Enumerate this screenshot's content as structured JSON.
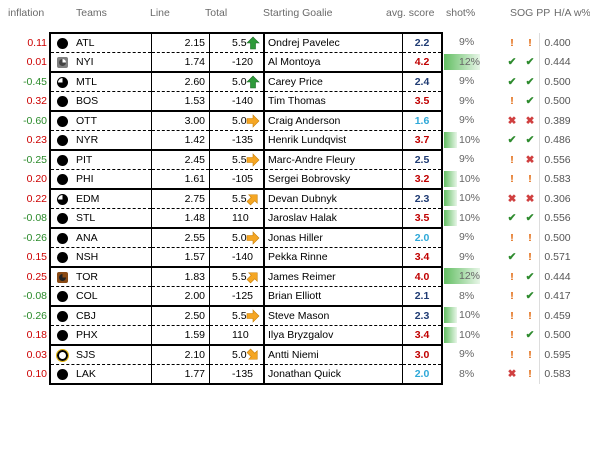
{
  "headers": {
    "inflation": "inflation",
    "teams": "Teams",
    "line": "Line",
    "total": "Total",
    "goalie": "Starting Goalie",
    "score": "avg. score",
    "shot": "shot%",
    "sogpp": "SOG PP",
    "ha": "H/A w%"
  },
  "rows": [
    {
      "inflation": "0.11",
      "team": "ATL",
      "logo": "full",
      "line": "2.15",
      "total": "5.5",
      "arrow": "up-green",
      "goalie": "Ondrej Pavelec",
      "score": "2.2",
      "score_class": "mid",
      "shot": "9%",
      "shot_fill": 0,
      "sog": "!",
      "pp": "!",
      "ha": "0.400",
      "group_pos": "top"
    },
    {
      "inflation": "0.01",
      "team": "NYI",
      "logo": "sq",
      "line": "1.74",
      "total": "-120",
      "arrow": "",
      "goalie": "Al Montoya",
      "score": "4.2",
      "score_class": "hi",
      "shot": "12%",
      "shot_fill": 0.7,
      "sog": "✔",
      "pp": "✔",
      "ha": "0.444",
      "group_pos": "bot"
    },
    {
      "inflation": "-0.45",
      "team": "MTL",
      "logo": "q",
      "line": "2.60",
      "total": "5.0",
      "arrow": "up-green",
      "goalie": "Carey Price",
      "score": "2.4",
      "score_class": "mid",
      "shot": "9%",
      "shot_fill": 0,
      "sog": "✔",
      "pp": "✔",
      "ha": "0.500",
      "group_pos": "top"
    },
    {
      "inflation": "0.32",
      "team": "BOS",
      "logo": "full",
      "line": "1.53",
      "total": "-140",
      "arrow": "",
      "goalie": "Tim Thomas",
      "score": "3.5",
      "score_class": "hi",
      "shot": "9%",
      "shot_fill": 0,
      "sog": "!",
      "pp": "✔",
      "ha": "0.500",
      "group_pos": "bot"
    },
    {
      "inflation": "-0.60",
      "team": "OTT",
      "logo": "full",
      "line": "3.00",
      "total": "5.0",
      "arrow": "right-orange",
      "goalie": "Craig Anderson",
      "score": "1.6",
      "score_class": "lo",
      "shot": "9%",
      "shot_fill": 0,
      "sog": "✖",
      "pp": "✖",
      "ha": "0.389",
      "group_pos": "top"
    },
    {
      "inflation": "0.23",
      "team": "NYR",
      "logo": "full",
      "line": "1.42",
      "total": "-135",
      "arrow": "",
      "goalie": "Henrik Lundqvist",
      "score": "3.7",
      "score_class": "hi",
      "shot": "10%",
      "shot_fill": 0.25,
      "sog": "✔",
      "pp": "✔",
      "ha": "0.486",
      "group_pos": "bot"
    },
    {
      "inflation": "-0.25",
      "team": "PIT",
      "logo": "full",
      "line": "2.45",
      "total": "5.5",
      "arrow": "right-orange",
      "goalie": "Marc-Andre Fleury",
      "score": "2.5",
      "score_class": "mid",
      "shot": "9%",
      "shot_fill": 0,
      "sog": "!",
      "pp": "✖",
      "ha": "0.556",
      "group_pos": "top"
    },
    {
      "inflation": "0.20",
      "team": "PHI",
      "logo": "full",
      "line": "1.61",
      "total": "-105",
      "arrow": "",
      "goalie": "Sergei Bobrovsky",
      "score": "3.2",
      "score_class": "hi",
      "shot": "10%",
      "shot_fill": 0.25,
      "sog": "!",
      "pp": "!",
      "ha": "0.583",
      "group_pos": "bot"
    },
    {
      "inflation": "0.22",
      "team": "EDM",
      "logo": "q",
      "line": "2.75",
      "total": "5.5",
      "arrow": "upright-orange",
      "goalie": "Devan Dubnyk",
      "score": "2.3",
      "score_class": "mid",
      "shot": "10%",
      "shot_fill": 0.25,
      "sog": "✖",
      "pp": "✖",
      "ha": "0.306",
      "group_pos": "top"
    },
    {
      "inflation": "-0.08",
      "team": "STL",
      "logo": "full",
      "line": "1.48",
      "total": "110",
      "arrow": "",
      "goalie": "Jaroslav Halak",
      "score": "3.5",
      "score_class": "hi",
      "shot": "10%",
      "shot_fill": 0.25,
      "sog": "✔",
      "pp": "✔",
      "ha": "0.556",
      "group_pos": "bot"
    },
    {
      "inflation": "-0.26",
      "team": "ANA",
      "logo": "full",
      "line": "2.55",
      "total": "5.0",
      "arrow": "right-orange",
      "goalie": "Jonas Hiller",
      "score": "2.0",
      "score_class": "lo",
      "shot": "9%",
      "shot_fill": 0,
      "sog": "!",
      "pp": "!",
      "ha": "0.500",
      "group_pos": "top"
    },
    {
      "inflation": "0.15",
      "team": "NSH",
      "logo": "full",
      "line": "1.57",
      "total": "-140",
      "arrow": "",
      "goalie": "Pekka Rinne",
      "score": "3.4",
      "score_class": "hi",
      "shot": "9%",
      "shot_fill": 0,
      "sog": "✔",
      "pp": "!",
      "ha": "0.571",
      "group_pos": "bot"
    },
    {
      "inflation": "0.25",
      "team": "TOR",
      "logo": "brown",
      "line": "1.83",
      "total": "5.5",
      "arrow": "upright-orange",
      "goalie": "James Reimer",
      "score": "4.0",
      "score_class": "hi",
      "shot": "12%",
      "shot_fill": 0.7,
      "sog": "!",
      "pp": "✔",
      "ha": "0.444",
      "group_pos": "top"
    },
    {
      "inflation": "-0.08",
      "team": "COL",
      "logo": "full",
      "line": "2.00",
      "total": "-125",
      "arrow": "",
      "goalie": "Brian Elliott",
      "score": "2.1",
      "score_class": "mid",
      "shot": "8%",
      "shot_fill": 0,
      "sog": "!",
      "pp": "✔",
      "ha": "0.417",
      "group_pos": "bot"
    },
    {
      "inflation": "-0.26",
      "team": "CBJ",
      "logo": "full",
      "line": "2.50",
      "total": "5.5",
      "arrow": "right-orange",
      "goalie": "Steve Mason",
      "score": "2.3",
      "score_class": "mid",
      "shot": "10%",
      "shot_fill": 0.25,
      "sog": "!",
      "pp": "!",
      "ha": "0.459",
      "group_pos": "top"
    },
    {
      "inflation": "0.18",
      "team": "PHX",
      "logo": "full",
      "line": "1.59",
      "total": "110",
      "arrow": "",
      "goalie": "Ilya Bryzgalov",
      "score": "3.4",
      "score_class": "hi",
      "shot": "10%",
      "shot_fill": 0.25,
      "sog": "!",
      "pp": "✔",
      "ha": "0.500",
      "group_pos": "bot"
    },
    {
      "inflation": "0.03",
      "team": "SJS",
      "logo": "ring",
      "line": "2.10",
      "total": "5.0",
      "arrow": "downright-orange",
      "goalie": "Antti Niemi",
      "score": "3.0",
      "score_class": "hi",
      "shot": "9%",
      "shot_fill": 0,
      "sog": "!",
      "pp": "!",
      "ha": "0.595",
      "group_pos": "top"
    },
    {
      "inflation": "0.10",
      "team": "LAK",
      "logo": "full",
      "line": "1.77",
      "total": "-135",
      "arrow": "",
      "goalie": "Jonathan Quick",
      "score": "2.0",
      "score_class": "lo",
      "shot": "8%",
      "shot_fill": 0,
      "sog": "✖",
      "pp": "!",
      "ha": "0.583",
      "group_pos": "bot"
    }
  ]
}
